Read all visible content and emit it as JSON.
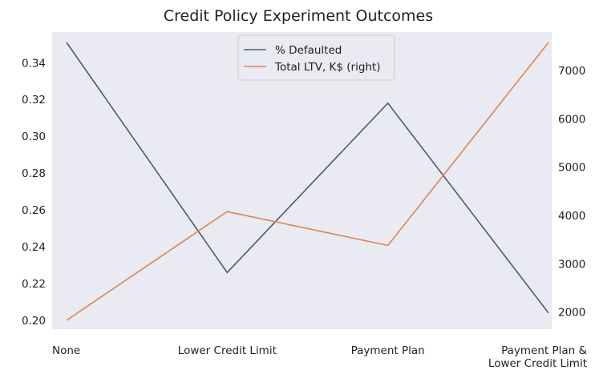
{
  "chart_data": {
    "type": "line",
    "title": "Credit Policy Experiment Outcomes",
    "categories": [
      "None",
      "Lower Credit Limit",
      "Payment Plan",
      "Payment Plan &\nLower Credit Limit"
    ],
    "series": [
      {
        "name": "% Defaulted",
        "axis": "left",
        "color": "#4c5a78",
        "values": [
          0.351,
          0.226,
          0.318,
          0.204
        ]
      },
      {
        "name": "Total LTV, K$ (right)",
        "axis": "right",
        "color": "#dd8452",
        "values": [
          1830,
          4080,
          3380,
          7580
        ]
      }
    ],
    "yleft": {
      "ylim": [
        0.2,
        0.351
      ],
      "ticks": [
        "0.20",
        "0.22",
        "0.24",
        "0.26",
        "0.28",
        "0.30",
        "0.32",
        "0.34"
      ]
    },
    "yright": {
      "ylim": [
        1830,
        7580
      ],
      "ticks": [
        "2000",
        "3000",
        "4000",
        "5000",
        "6000",
        "7000"
      ]
    },
    "grid": false,
    "legend": "top-center",
    "background": "#eaeaf2"
  }
}
